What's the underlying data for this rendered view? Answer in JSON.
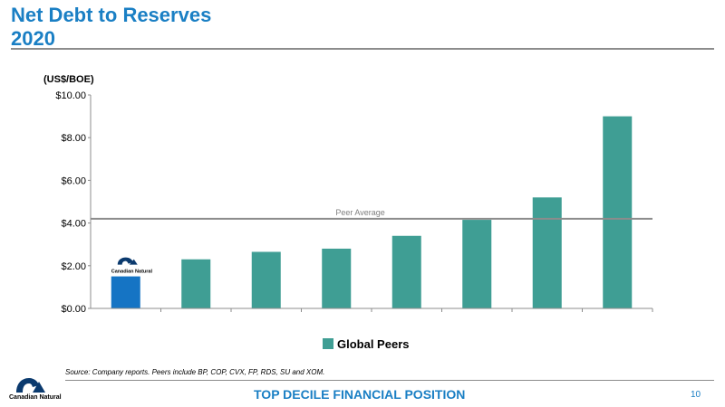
{
  "header": {
    "title_line1": "Net Debt to Reserves",
    "title_line2": "2020"
  },
  "chart_data": {
    "type": "bar",
    "ylabel": "(US$/BOE)",
    "ylim": [
      0,
      10
    ],
    "y_ticks": [
      "$0.00",
      "$2.00",
      "$4.00",
      "$6.00",
      "$8.00",
      "$10.00"
    ],
    "y_tick_values": [
      0,
      2,
      4,
      6,
      8,
      10
    ],
    "categories": [
      "Canadian Natural",
      "",
      "",
      "",
      "",
      "",
      "",
      ""
    ],
    "values": [
      1.5,
      2.3,
      2.65,
      2.8,
      3.4,
      4.15,
      5.2,
      9.0
    ],
    "bar_colors": [
      "#1574c4",
      "#3f9e94",
      "#3f9e94",
      "#3f9e94",
      "#3f9e94",
      "#3f9e94",
      "#3f9e94",
      "#3f9e94"
    ],
    "reference_line": {
      "label": "Peer Average",
      "value": 4.2
    },
    "legend": {
      "label": "Global Peers",
      "color": "#3f9e94",
      "placement": "bottom-center"
    },
    "grid": false
  },
  "footer": {
    "source": "Source: Company reports. Peers include BP, COP, CVX, FP, RDS, SU and XOM.",
    "title": "TOP DECILE FINANCIAL POSITION",
    "page_number": "10",
    "logo_text": "Canadian Natural"
  }
}
